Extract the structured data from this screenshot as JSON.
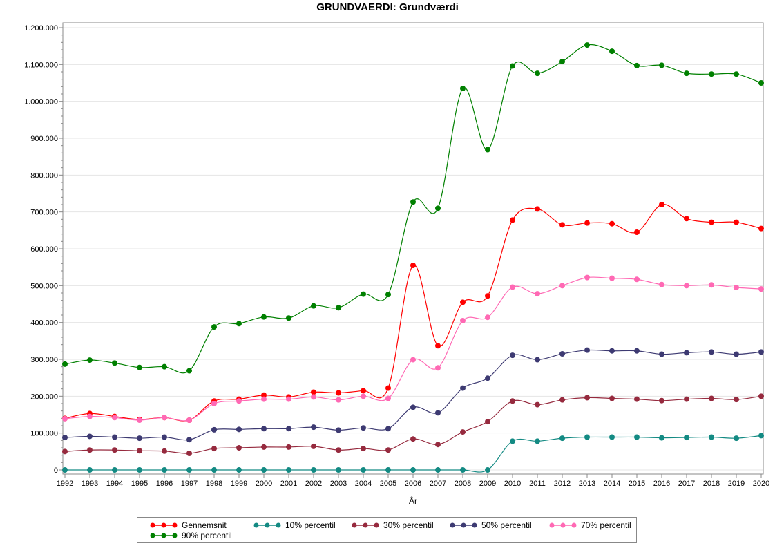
{
  "chart_data": {
    "type": "line",
    "title": "GRUNDVAERDI: Grundværdi",
    "xlabel": "År",
    "ylabel": "",
    "x": [
      1992,
      1993,
      1994,
      1995,
      1996,
      1997,
      1998,
      1999,
      2000,
      2001,
      2002,
      2003,
      2004,
      2005,
      2006,
      2007,
      2008,
      2009,
      2010,
      2011,
      2012,
      2013,
      2014,
      2015,
      2016,
      2017,
      2018,
      2019,
      2020
    ],
    "ylim": [
      0,
      1200000
    ],
    "yticks": [
      "0",
      "100.000",
      "200.000",
      "300.000",
      "400.000",
      "500.000",
      "600.000",
      "700.000",
      "800.000",
      "900.000",
      "1.000.000",
      "1.100.000",
      "1.200.000"
    ],
    "grid": true,
    "legend_position": "bottom",
    "series": [
      {
        "name": "Gennemsnit",
        "color": "#ff0000",
        "values": [
          140000,
          153000,
          145000,
          137000,
          142000,
          135000,
          187000,
          192000,
          203000,
          198000,
          211000,
          209000,
          215000,
          222000,
          555000,
          337000,
          455000,
          472000,
          678000,
          708000,
          665000,
          670000,
          668000,
          645000,
          720000,
          682000,
          672000,
          672000,
          655000
        ]
      },
      {
        "name": "10% percentil",
        "color": "#138a83",
        "values": [
          0,
          0,
          0,
          0,
          0,
          0,
          0,
          0,
          0,
          0,
          0,
          0,
          0,
          0,
          0,
          0,
          0,
          0,
          78000,
          78000,
          86000,
          89000,
          89000,
          89000,
          87000,
          88000,
          89000,
          86000,
          93000
        ]
      },
      {
        "name": "30% percentil",
        "color": "#962a3e",
        "values": [
          50000,
          54000,
          54000,
          52000,
          51000,
          45000,
          58000,
          60000,
          62000,
          62000,
          64000,
          54000,
          58000,
          54000,
          84000,
          69000,
          103000,
          131000,
          187000,
          177000,
          190000,
          196000,
          194000,
          192000,
          188000,
          192000,
          194000,
          191000,
          200000
        ]
      },
      {
        "name": "50% percentil",
        "color": "#3d3a72",
        "values": [
          88000,
          91000,
          89000,
          86000,
          89000,
          82000,
          109000,
          110000,
          112000,
          112000,
          116000,
          108000,
          114000,
          112000,
          170000,
          155000,
          222000,
          249000,
          311000,
          299000,
          315000,
          325000,
          323000,
          323000,
          314000,
          318000,
          320000,
          314000,
          320000
        ]
      },
      {
        "name": "70% percentil",
        "color": "#ff69b4",
        "values": [
          139000,
          145000,
          142000,
          135000,
          142000,
          135000,
          180000,
          187000,
          192000,
          192000,
          198000,
          190000,
          200000,
          194000,
          299000,
          277000,
          405000,
          414000,
          496000,
          478000,
          500000,
          522000,
          520000,
          517000,
          503000,
          500000,
          502000,
          495000,
          491000
        ]
      },
      {
        "name": "90% percentil",
        "color": "#008000",
        "values": [
          287000,
          298000,
          290000,
          278000,
          280000,
          269000,
          388000,
          397000,
          415000,
          412000,
          445000,
          440000,
          477000,
          476000,
          727000,
          710000,
          1035000,
          869000,
          1096000,
          1076000,
          1108000,
          1153000,
          1136000,
          1097000,
          1098000,
          1076000,
          1074000,
          1074000,
          1050000
        ]
      }
    ]
  }
}
